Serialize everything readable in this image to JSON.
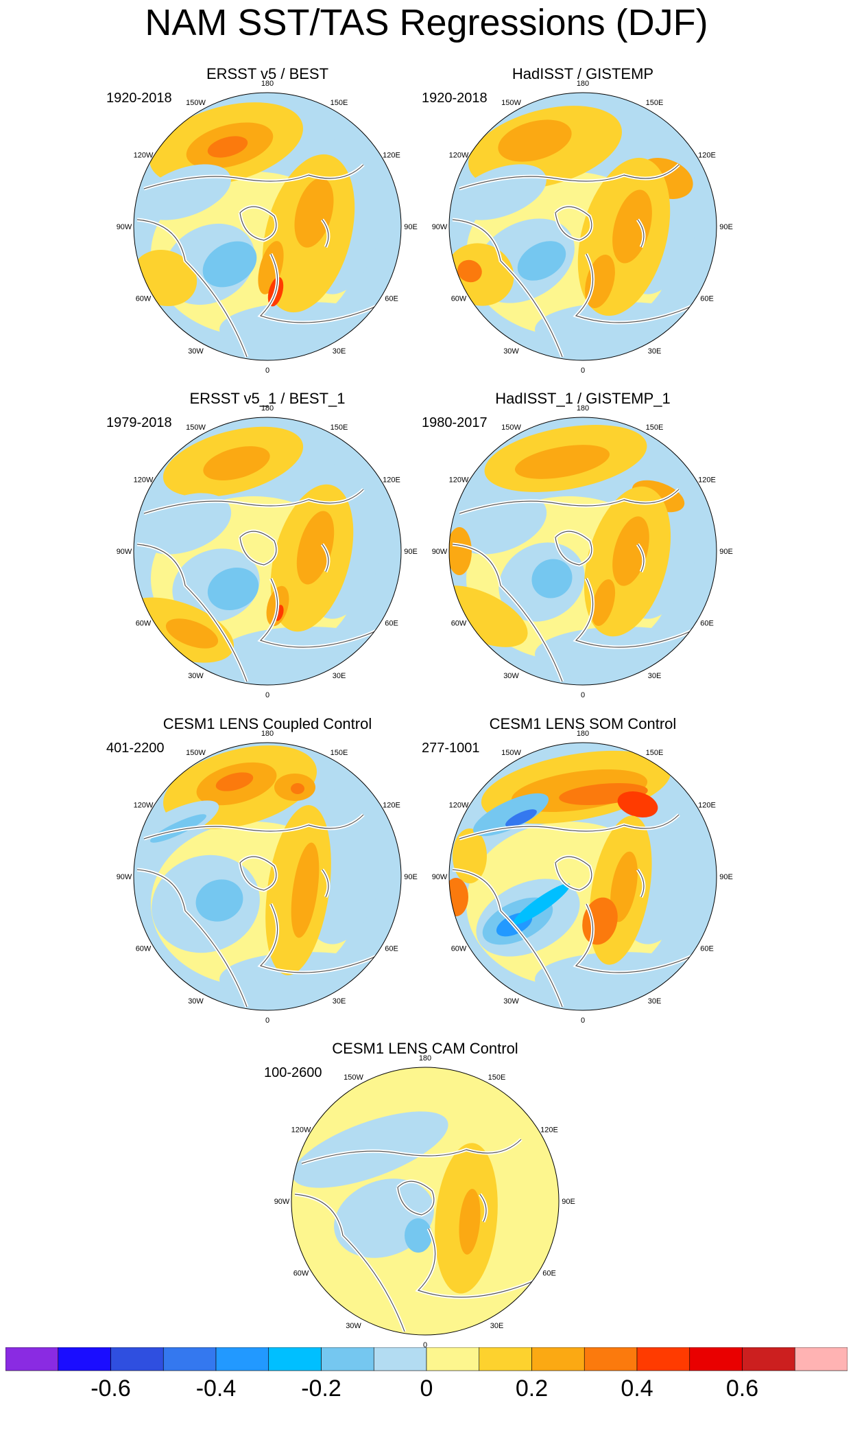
{
  "title": "NAM SST/TAS Regressions (DJF)",
  "panels": [
    {
      "title": "ERSST v5 / BEST",
      "period": "1920-2018",
      "style": "obs_a"
    },
    {
      "title": "HadISST / GISTEMP",
      "period": "1920-2018",
      "style": "obs_b"
    },
    {
      "title": "ERSST v5_1 / BEST_1",
      "period": "1979-2018",
      "style": "obs_c"
    },
    {
      "title": "HadISST_1 / GISTEMP_1",
      "period": "1980-2017",
      "style": "obs_d"
    },
    {
      "title": "CESM1 LENS Coupled Control",
      "period": "401-2200",
      "style": "coupled"
    },
    {
      "title": "CESM1 LENS SOM Control",
      "period": "277-1001",
      "style": "som"
    },
    {
      "title": "CESM1 LENS CAM Control",
      "period": "100-2600",
      "style": "cam"
    }
  ],
  "lon_labels": [
    "180",
    "150E",
    "120E",
    "90E",
    "60E",
    "30E",
    "0",
    "30W",
    "60W",
    "90W",
    "120W",
    "150W"
  ],
  "colorbar": {
    "colors": [
      "#8a2be2",
      "#1a0dff",
      "#2f4fe0",
      "#3478ef",
      "#2299ff",
      "#00bfff",
      "#75c7f0",
      "#b3dcf2",
      "#fdf68e",
      "#fdd22e",
      "#fba913",
      "#fb7a0d",
      "#ff3b00",
      "#e90000",
      "#cc1f1f",
      "#ffb3b3"
    ],
    "tick_labels": [
      "-0.6",
      "-0.4",
      "-0.2",
      "0",
      "0.2",
      "0.4",
      "0.6"
    ]
  }
}
